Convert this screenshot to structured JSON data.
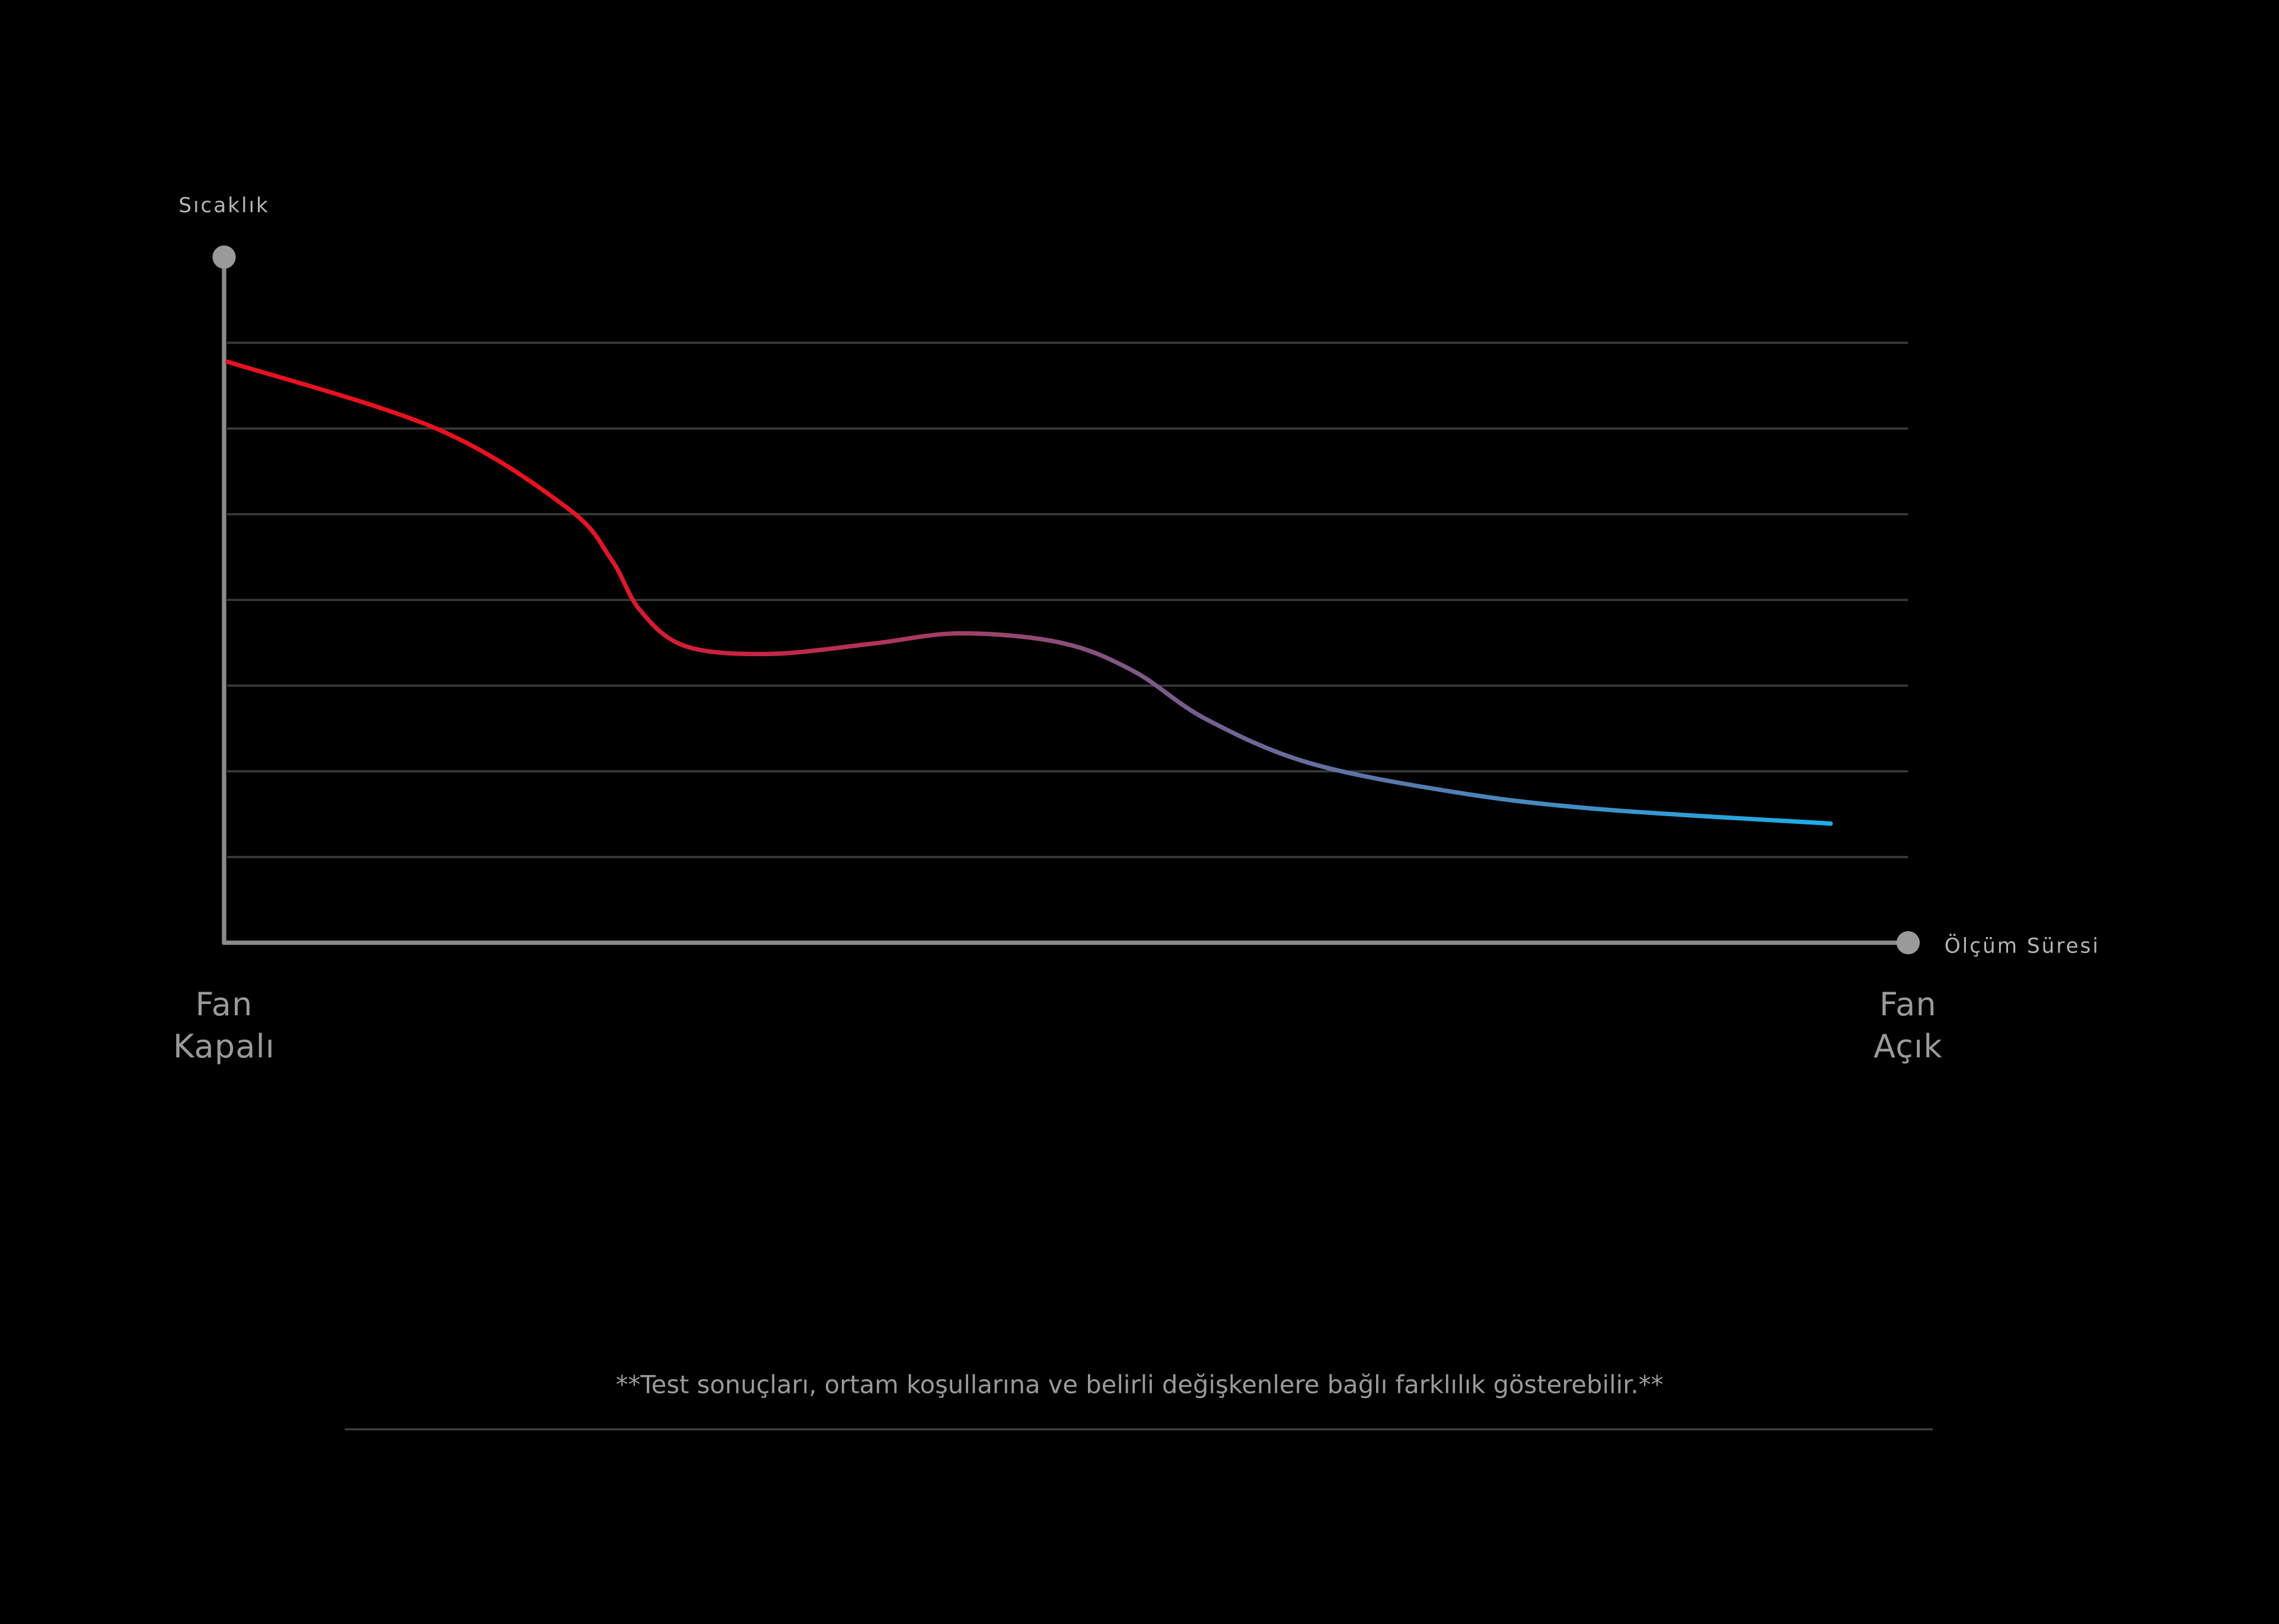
{
  "chart_data": {
    "type": "line",
    "title": "",
    "ylabel": "Sıcaklık",
    "xlabel": "Ölçüm Süresi",
    "x_start_label": [
      "Fan",
      "Kapalı"
    ],
    "x_end_label": [
      "Fan",
      "Açık"
    ],
    "xlim": [
      0,
      100
    ],
    "ylim": [
      0,
      8
    ],
    "grid": true,
    "grid_levels": [
      1,
      2,
      3,
      4,
      5,
      6,
      7
    ],
    "series": [
      {
        "name": "Sıcaklık",
        "x": [
          0.2,
          12.6,
          20.4,
          23.0,
          24.7,
          27.4,
          32.4,
          38.5,
          43.7,
          49.7,
          54.0,
          58.3,
          64.4,
          73.0,
          81.6,
          95.4
        ],
        "y": [
          6.78,
          6.0,
          5.07,
          4.47,
          3.88,
          3.46,
          3.37,
          3.49,
          3.61,
          3.5,
          3.17,
          2.61,
          2.1,
          1.76,
          1.56,
          1.39
        ],
        "colors": [
          "#e8121f",
          "#c0284a",
          "#7b5a8a",
          "#1ab0ea"
        ]
      }
    ],
    "footnote": "**Test sonuçları, ortam koşullarına ve belirli değişkenlere bağlı farklılık gösterebilir.**"
  }
}
